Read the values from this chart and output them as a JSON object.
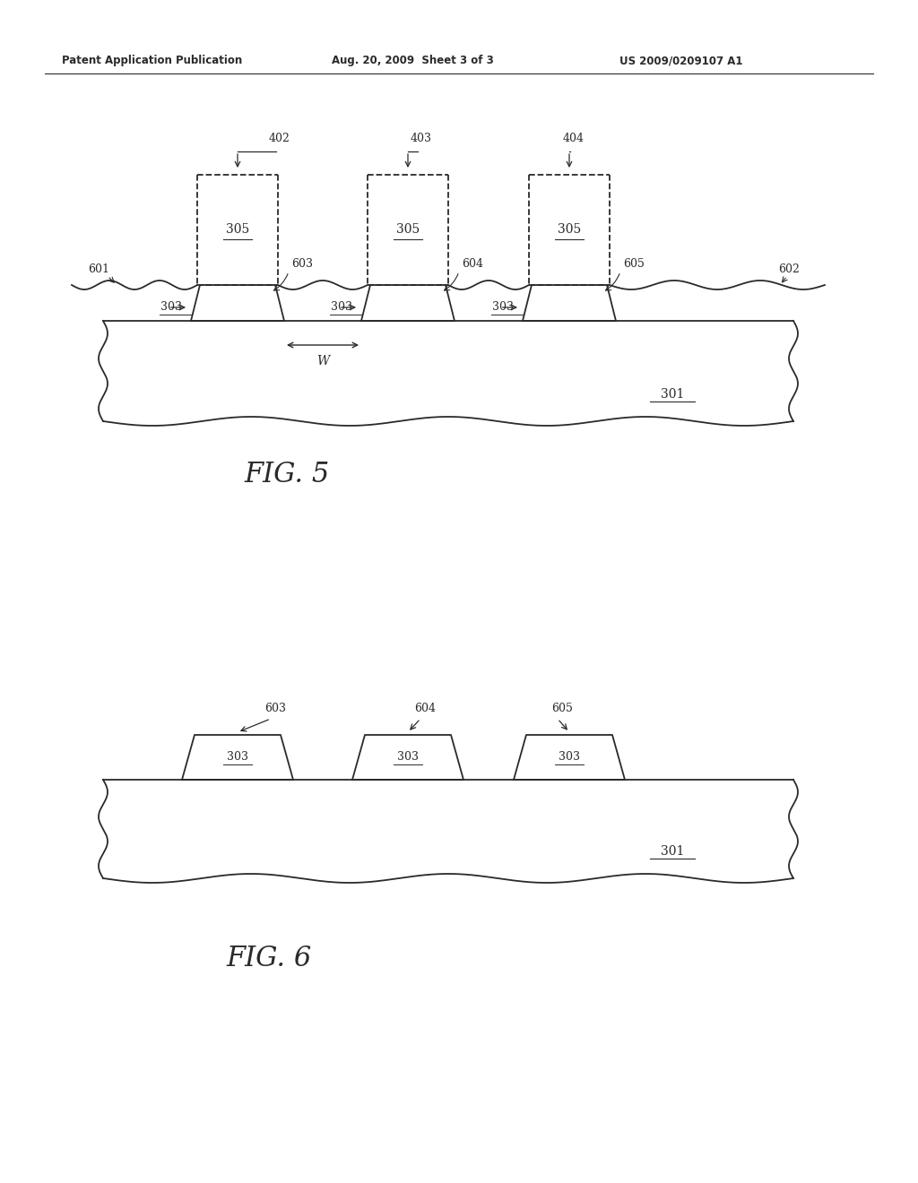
{
  "background_color": "#ffffff",
  "line_color": "#2a2a2a",
  "text_color": "#2a2a2a",
  "header_left": "Patent Application Publication",
  "header_mid": "Aug. 20, 2009  Sheet 3 of 3",
  "header_right": "US 2009/0209107 A1"
}
